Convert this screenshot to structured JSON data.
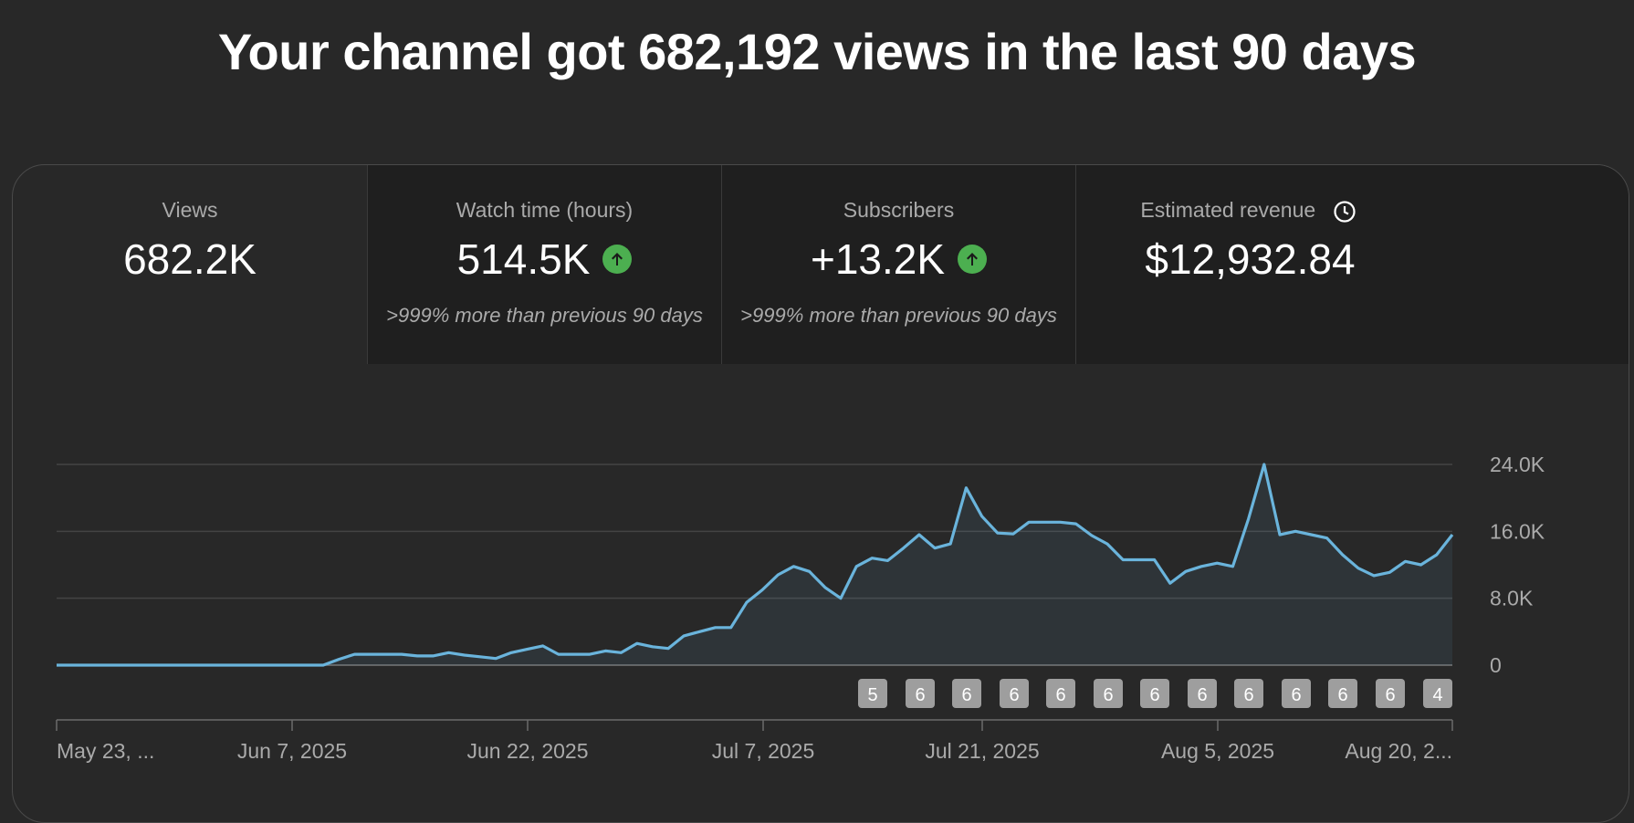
{
  "headline": "Your channel got 682,192 views in the last 90 days",
  "metrics": [
    {
      "label": "Views",
      "value": "682.2K",
      "note": ""
    },
    {
      "label": "Watch time (hours)",
      "value": "514.5K",
      "note": ">999% more than previous 90 days",
      "trend": "up"
    },
    {
      "label": "Subscribers",
      "value": "+13.2K",
      "note": ">999% more than previous 90 days",
      "trend": "up"
    },
    {
      "label": "Estimated revenue",
      "value": "$12,932.84",
      "note": "",
      "icon": "clock-icon"
    }
  ],
  "colors": {
    "line": "#6ab4dc",
    "up": "#4caf50",
    "badge": "#9e9e9e"
  },
  "chart_data": {
    "type": "area",
    "ylim": [
      0,
      24000
    ],
    "y_ticks": [
      {
        "value": 0,
        "label": "0"
      },
      {
        "value": 8000,
        "label": "8.0K"
      },
      {
        "value": 16000,
        "label": "16.0K"
      },
      {
        "value": 24000,
        "label": "24.0K"
      }
    ],
    "x_start": "2025-05-23",
    "x_ticks": [
      "May 23, ...",
      "Jun 7, 2025",
      "Jun 22, 2025",
      "Jul 7, 2025",
      "Jul 21, 2025",
      "Aug 5, 2025",
      "Aug 20, 2..."
    ],
    "values": [
      0,
      0,
      0,
      0,
      0,
      0,
      0,
      0,
      0,
      0,
      0,
      0,
      0,
      0,
      0,
      0,
      0,
      0,
      700,
      1300,
      1300,
      1300,
      1300,
      1100,
      1100,
      1500,
      1200,
      1000,
      800,
      1500,
      1900,
      2300,
      1300,
      1300,
      1300,
      1700,
      1500,
      2600,
      2200,
      2000,
      3500,
      4000,
      4500,
      4500,
      7500,
      9000,
      10800,
      11800,
      11200,
      9300,
      8000,
      11800,
      12800,
      12500,
      14000,
      15600,
      14000,
      14500,
      21200,
      17800,
      15800,
      15700,
      17100,
      17100,
      17100,
      16900,
      15500,
      14500,
      12600,
      12600,
      12600,
      9800,
      11200,
      11800,
      12200,
      11800,
      17500,
      24000,
      15600,
      16000,
      15600,
      15200,
      13200,
      11600,
      10700,
      11100,
      12400,
      12000,
      13200,
      15600
    ],
    "annotations": [
      "5",
      "6",
      "6",
      "6",
      "6",
      "6",
      "6",
      "6",
      "6",
      "6",
      "6",
      "6",
      "4"
    ]
  }
}
